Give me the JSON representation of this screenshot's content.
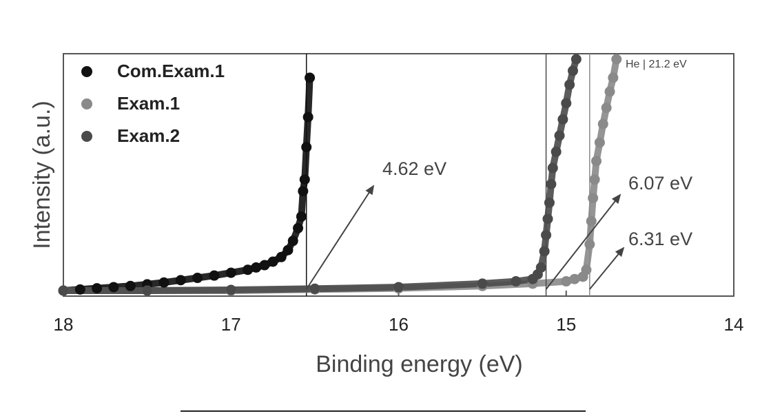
{
  "chart_data": {
    "type": "scatter",
    "xlabel": "Binding energy (eV)",
    "ylabel": "Intensity (a.u.)",
    "xlim": [
      18,
      14
    ],
    "ylim": [
      0,
      1
    ],
    "x_reversed": true,
    "x_ticks": [
      "18",
      "17",
      "16",
      "15",
      "14"
    ],
    "legend_position": "top-left",
    "corner_label": "He | 21.2 eV",
    "series": [
      {
        "name": "Com.Exam.1",
        "color": "#111111",
        "cutoff_x": 16.55,
        "x": [
          18.0,
          17.9,
          17.8,
          17.7,
          17.6,
          17.5,
          17.4,
          17.3,
          17.2,
          17.1,
          17.0,
          16.9,
          16.85,
          16.8,
          16.75,
          16.7,
          16.66,
          16.63,
          16.6,
          16.58,
          16.57,
          16.56,
          16.55,
          16.54,
          16.53
        ],
        "y": [
          0.0,
          0.005,
          0.01,
          0.015,
          0.02,
          0.027,
          0.035,
          0.045,
          0.055,
          0.065,
          0.077,
          0.09,
          0.1,
          0.11,
          0.125,
          0.145,
          0.175,
          0.215,
          0.27,
          0.32,
          0.43,
          0.48,
          0.62,
          0.75,
          0.92
        ]
      },
      {
        "name": "Exam.1",
        "color": "#8a8a8a",
        "cutoff_x": 14.86,
        "x": [
          18.0,
          17.5,
          17.0,
          16.5,
          16.0,
          15.5,
          15.2,
          15.0,
          14.95,
          14.9,
          14.88,
          14.86,
          14.85,
          14.84,
          14.83,
          14.82,
          14.8,
          14.78,
          14.76,
          14.74,
          14.72,
          14.7
        ],
        "y": [
          0.0,
          0.0,
          0.0,
          0.005,
          0.01,
          0.02,
          0.03,
          0.04,
          0.05,
          0.06,
          0.09,
          0.2,
          0.3,
          0.4,
          0.48,
          0.56,
          0.64,
          0.72,
          0.79,
          0.86,
          0.92,
          1.0
        ]
      },
      {
        "name": "Exam.2",
        "color": "#4a4a4a",
        "cutoff_x": 15.12,
        "x": [
          18.0,
          17.5,
          17.0,
          16.5,
          16.0,
          15.5,
          15.3,
          15.2,
          15.17,
          15.15,
          15.13,
          15.12,
          15.11,
          15.1,
          15.09,
          15.08,
          15.06,
          15.04,
          15.02,
          15.0,
          14.98,
          14.96,
          14.94
        ],
        "y": [
          0.0,
          0.0,
          0.003,
          0.008,
          0.015,
          0.03,
          0.04,
          0.05,
          0.07,
          0.1,
          0.17,
          0.24,
          0.31,
          0.38,
          0.46,
          0.53,
          0.6,
          0.67,
          0.74,
          0.81,
          0.89,
          0.95,
          1.0
        ]
      }
    ],
    "annotations": [
      {
        "text": "4.62 eV",
        "series": "Com.Exam.1"
      },
      {
        "text": "6.07 eV",
        "series": "Exam.2"
      },
      {
        "text": "6.31 eV",
        "series": "Exam.1"
      }
    ]
  }
}
